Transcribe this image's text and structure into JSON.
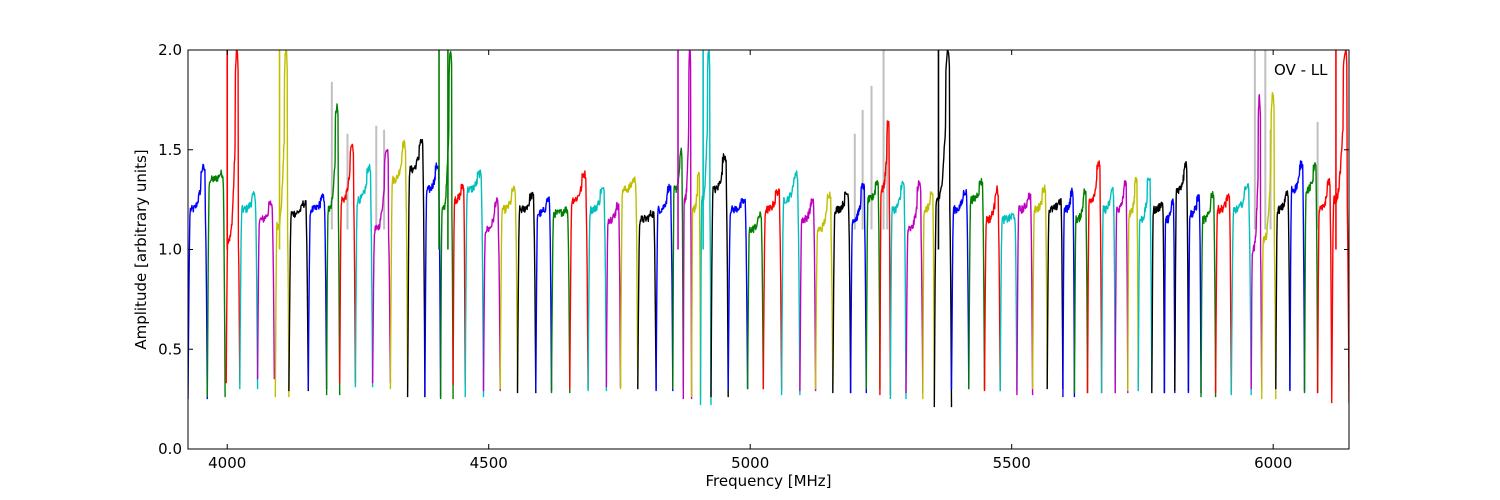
{
  "chart_data": {
    "type": "line",
    "title": "",
    "xlabel": "Frequency [MHz]",
    "ylabel": "Amplitude [arbitrary units]",
    "xlim": [
      3925,
      6145
    ],
    "ylim": [
      0.0,
      2.0
    ],
    "xticks": [
      4000,
      4500,
      5000,
      5500,
      6000
    ],
    "yticks": [
      0.0,
      0.5,
      1.0,
      1.5,
      2.0
    ],
    "xtick_labels": [
      "4000",
      "4500",
      "5000",
      "5500",
      "6000"
    ],
    "ytick_labels": [
      "0.0",
      "0.5",
      "1.0",
      "1.5",
      "2.0"
    ],
    "annotation": "OV - LL",
    "grid": false,
    "series_colors": [
      "#0000ff",
      "#008000",
      "#ff0000",
      "#00bfbf",
      "#bf00bf",
      "#bfbf00",
      "#000000"
    ],
    "raw_color": "#c0c0c0",
    "channels": [
      {
        "x0": 3925,
        "x1": 3962,
        "base": 0.25,
        "level": 1.2,
        "peak": 1.41,
        "color": "#0000ff"
      },
      {
        "x0": 3962,
        "x1": 3996,
        "base": 0.26,
        "level": 1.35,
        "peak": 1.38,
        "color": "#008000"
      },
      {
        "x0": 3998,
        "x1": 4024,
        "base": 0.33,
        "level": 1.05,
        "peak": 2.0,
        "color": "#ff0000"
      },
      {
        "x0": 4024,
        "x1": 4058,
        "base": 0.3,
        "level": 1.2,
        "peak": 1.27,
        "color": "#00bfbf"
      },
      {
        "x0": 4058,
        "x1": 4090,
        "base": 0.35,
        "level": 1.15,
        "peak": 1.23,
        "color": "#bf00bf"
      },
      {
        "x0": 4092,
        "x1": 4118,
        "base": 0.26,
        "level": 1.12,
        "peak": 2.0,
        "color": "#bfbf00"
      },
      {
        "x0": 4118,
        "x1": 4155,
        "base": 0.29,
        "level": 1.18,
        "peak": 1.23,
        "color": "#000000"
      },
      {
        "x0": 4155,
        "x1": 4190,
        "base": 0.3,
        "level": 1.2,
        "peak": 1.26,
        "color": "#0000ff"
      },
      {
        "x0": 4190,
        "x1": 4215,
        "base": 0.27,
        "level": 1.2,
        "peak": 1.72,
        "color": "#008000"
      },
      {
        "x0": 4215,
        "x1": 4245,
        "base": 0.33,
        "level": 1.25,
        "peak": 1.52,
        "color": "#ff0000"
      },
      {
        "x0": 4245,
        "x1": 4278,
        "base": 0.31,
        "level": 1.25,
        "peak": 1.41,
        "color": "#00bfbf"
      },
      {
        "x0": 4278,
        "x1": 4312,
        "base": 0.33,
        "level": 1.1,
        "peak": 1.51,
        "color": "#bf00bf"
      },
      {
        "x0": 4312,
        "x1": 4345,
        "base": 0.3,
        "level": 1.35,
        "peak": 1.53,
        "color": "#bfbf00"
      },
      {
        "x0": 4345,
        "x1": 4378,
        "base": 0.26,
        "level": 1.4,
        "peak": 1.54,
        "color": "#000000"
      },
      {
        "x0": 4378,
        "x1": 4408,
        "base": 0.26,
        "level": 1.3,
        "peak": 1.42,
        "color": "#0000ff"
      },
      {
        "x0": 4408,
        "x1": 4432,
        "base": 0.25,
        "level": 1.2,
        "peak": 2.0,
        "color": "#008000"
      },
      {
        "x0": 4432,
        "x1": 4455,
        "base": 0.32,
        "level": 1.25,
        "peak": 1.32,
        "color": "#ff0000"
      },
      {
        "x0": 4455,
        "x1": 4490,
        "base": 0.26,
        "level": 1.3,
        "peak": 1.38,
        "color": "#00bfbf"
      },
      {
        "x0": 4490,
        "x1": 4522,
        "base": 0.29,
        "level": 1.1,
        "peak": 1.24,
        "color": "#bf00bf"
      },
      {
        "x0": 4522,
        "x1": 4555,
        "base": 0.3,
        "level": 1.2,
        "peak": 1.3,
        "color": "#bfbf00"
      },
      {
        "x0": 4555,
        "x1": 4590,
        "base": 0.28,
        "level": 1.2,
        "peak": 1.27,
        "color": "#000000"
      },
      {
        "x0": 4590,
        "x1": 4620,
        "base": 0.29,
        "level": 1.18,
        "peak": 1.25,
        "color": "#0000ff"
      },
      {
        "x0": 4620,
        "x1": 4655,
        "base": 0.28,
        "level": 1.18,
        "peak": 1.2,
        "color": "#008000"
      },
      {
        "x0": 4655,
        "x1": 4690,
        "base": 0.3,
        "level": 1.25,
        "peak": 1.38,
        "color": "#ff0000"
      },
      {
        "x0": 4690,
        "x1": 4725,
        "base": 0.29,
        "level": 1.2,
        "peak": 1.3,
        "color": "#00bfbf"
      },
      {
        "x0": 4725,
        "x1": 4752,
        "base": 0.31,
        "level": 1.15,
        "peak": 1.22,
        "color": "#bf00bf"
      },
      {
        "x0": 4752,
        "x1": 4785,
        "base": 0.3,
        "level": 1.3,
        "peak": 1.35,
        "color": "#bfbf00"
      },
      {
        "x0": 4785,
        "x1": 4820,
        "base": 0.3,
        "level": 1.15,
        "peak": 1.18,
        "color": "#000000"
      },
      {
        "x0": 4820,
        "x1": 4852,
        "base": 0.29,
        "level": 1.2,
        "peak": 1.31,
        "color": "#0000ff"
      },
      {
        "x0": 4852,
        "x1": 4872,
        "base": 0.3,
        "level": 1.3,
        "peak": 1.49,
        "color": "#008000"
      },
      {
        "x0": 4872,
        "x1": 4888,
        "base": 0.25,
        "level": 1.25,
        "peak": 2.0,
        "color": "#bf00bf"
      },
      {
        "x0": 4888,
        "x1": 4905,
        "base": 0.26,
        "level": 1.2,
        "peak": 1.38,
        "color": "#bfbf00"
      },
      {
        "x0": 4905,
        "x1": 4925,
        "base": 0.22,
        "level": 1.25,
        "peak": 2.0,
        "color": "#00bfbf"
      },
      {
        "x0": 4925,
        "x1": 4958,
        "base": 0.26,
        "level": 1.3,
        "peak": 1.47,
        "color": "#000000"
      },
      {
        "x0": 4958,
        "x1": 4995,
        "base": 0.3,
        "level": 1.2,
        "peak": 1.24,
        "color": "#0000ff"
      },
      {
        "x0": 4995,
        "x1": 5025,
        "base": 0.3,
        "level": 1.1,
        "peak": 1.17,
        "color": "#008000"
      },
      {
        "x0": 5025,
        "x1": 5060,
        "base": 0.3,
        "level": 1.2,
        "peak": 1.29,
        "color": "#ff0000"
      },
      {
        "x0": 5060,
        "x1": 5095,
        "base": 0.27,
        "level": 1.25,
        "peak": 1.38,
        "color": "#00bfbf"
      },
      {
        "x0": 5095,
        "x1": 5125,
        "base": 0.29,
        "level": 1.15,
        "peak": 1.24,
        "color": "#bf00bf"
      },
      {
        "x0": 5125,
        "x1": 5158,
        "base": 0.3,
        "level": 1.1,
        "peak": 1.28,
        "color": "#bfbf00"
      },
      {
        "x0": 5158,
        "x1": 5192,
        "base": 0.28,
        "level": 1.2,
        "peak": 1.28,
        "color": "#000000"
      },
      {
        "x0": 5192,
        "x1": 5222,
        "base": 0.28,
        "level": 1.15,
        "peak": 1.32,
        "color": "#0000ff"
      },
      {
        "x0": 5222,
        "x1": 5248,
        "base": 0.3,
        "level": 1.25,
        "peak": 1.34,
        "color": "#008000"
      },
      {
        "x0": 5248,
        "x1": 5268,
        "base": 0.27,
        "level": 1.3,
        "peak": 1.64,
        "color": "#ff0000"
      },
      {
        "x0": 5268,
        "x1": 5298,
        "base": 0.25,
        "level": 1.2,
        "peak": 1.33,
        "color": "#00bfbf"
      },
      {
        "x0": 5298,
        "x1": 5330,
        "base": 0.28,
        "level": 1.1,
        "peak": 1.33,
        "color": "#bf00bf"
      },
      {
        "x0": 5330,
        "x1": 5352,
        "base": 0.25,
        "level": 1.2,
        "peak": 1.28,
        "color": "#bfbf00"
      },
      {
        "x0": 5352,
        "x1": 5385,
        "base": 0.21,
        "level": 1.25,
        "peak": 2.0,
        "color": "#000000"
      },
      {
        "x0": 5385,
        "x1": 5418,
        "base": 0.3,
        "level": 1.2,
        "peak": 1.29,
        "color": "#0000ff"
      },
      {
        "x0": 5418,
        "x1": 5448,
        "base": 0.3,
        "level": 1.25,
        "peak": 1.34,
        "color": "#008000"
      },
      {
        "x0": 5448,
        "x1": 5478,
        "base": 0.29,
        "level": 1.15,
        "peak": 1.3,
        "color": "#ff0000"
      },
      {
        "x0": 5478,
        "x1": 5510,
        "base": 0.29,
        "level": 1.15,
        "peak": 1.17,
        "color": "#00bfbf"
      },
      {
        "x0": 5510,
        "x1": 5540,
        "base": 0.27,
        "level": 1.2,
        "peak": 1.27,
        "color": "#bf00bf"
      },
      {
        "x0": 5540,
        "x1": 5568,
        "base": 0.3,
        "level": 1.2,
        "peak": 1.31,
        "color": "#bfbf00"
      },
      {
        "x0": 5568,
        "x1": 5598,
        "base": 0.3,
        "level": 1.2,
        "peak": 1.24,
        "color": "#000000"
      },
      {
        "x0": 5598,
        "x1": 5620,
        "base": 0.26,
        "level": 1.2,
        "peak": 1.29,
        "color": "#0000ff"
      },
      {
        "x0": 5620,
        "x1": 5645,
        "base": 0.28,
        "level": 1.15,
        "peak": 1.29,
        "color": "#008000"
      },
      {
        "x0": 5645,
        "x1": 5672,
        "base": 0.28,
        "level": 1.25,
        "peak": 1.43,
        "color": "#ff0000"
      },
      {
        "x0": 5672,
        "x1": 5698,
        "base": 0.28,
        "level": 1.2,
        "peak": 1.3,
        "color": "#00bfbf"
      },
      {
        "x0": 5698,
        "x1": 5722,
        "base": 0.28,
        "level": 1.2,
        "peak": 1.33,
        "color": "#bf00bf"
      },
      {
        "x0": 5722,
        "x1": 5742,
        "base": 0.29,
        "level": 1.18,
        "peak": 1.36,
        "color": "#bfbf00"
      },
      {
        "x0": 5742,
        "x1": 5768,
        "base": 0.29,
        "level": 1.15,
        "peak": 1.36,
        "color": "#00bfbf"
      },
      {
        "x0": 5768,
        "x1": 5792,
        "base": 0.28,
        "level": 1.2,
        "peak": 1.23,
        "color": "#000000"
      },
      {
        "x0": 5792,
        "x1": 5812,
        "base": 0.28,
        "level": 1.15,
        "peak": 1.24,
        "color": "#0000ff"
      },
      {
        "x0": 5812,
        "x1": 5838,
        "base": 0.29,
        "level": 1.3,
        "peak": 1.43,
        "color": "#000000"
      },
      {
        "x0": 5838,
        "x1": 5862,
        "base": 0.28,
        "level": 1.18,
        "peak": 1.26,
        "color": "#0000ff"
      },
      {
        "x0": 5862,
        "x1": 5890,
        "base": 0.26,
        "level": 1.15,
        "peak": 1.28,
        "color": "#008000"
      },
      {
        "x0": 5890,
        "x1": 5920,
        "base": 0.28,
        "level": 1.2,
        "peak": 1.26,
        "color": "#ff0000"
      },
      {
        "x0": 5920,
        "x1": 5958,
        "base": 0.27,
        "level": 1.2,
        "peak": 1.32,
        "color": "#00bfbf"
      },
      {
        "x0": 5958,
        "x1": 5978,
        "base": 0.3,
        "level": 1.0,
        "peak": 1.76,
        "color": "#bf00bf"
      },
      {
        "x0": 5978,
        "x1": 6005,
        "base": 0.25,
        "level": 1.05,
        "peak": 1.78,
        "color": "#bfbf00"
      },
      {
        "x0": 6005,
        "x1": 6032,
        "base": 0.3,
        "level": 1.2,
        "peak": 1.28,
        "color": "#000000"
      },
      {
        "x0": 6032,
        "x1": 6060,
        "base": 0.29,
        "level": 1.3,
        "peak": 1.43,
        "color": "#0000ff"
      },
      {
        "x0": 6060,
        "x1": 6085,
        "base": 0.28,
        "level": 1.3,
        "peak": 1.42,
        "color": "#008000"
      },
      {
        "x0": 6085,
        "x1": 6112,
        "base": 0.28,
        "level": 1.2,
        "peak": 1.34,
        "color": "#ff0000"
      },
      {
        "x0": 6112,
        "x1": 6145,
        "base": 0.23,
        "level": 1.25,
        "peak": 2.0,
        "color": "#ff0000"
      }
    ],
    "spikes": [
      {
        "x": 4000,
        "y": 2.0,
        "color": "#ff0000"
      },
      {
        "x": 4100,
        "y": 2.0,
        "color": "#bfbf00"
      },
      {
        "x": 4405,
        "y": 2.0,
        "color": "#008000"
      },
      {
        "x": 4422,
        "y": 2.0,
        "color": "#008000"
      },
      {
        "x": 4862,
        "y": 2.0,
        "color": "#bf00bf"
      },
      {
        "x": 4910,
        "y": 2.0,
        "color": "#00bfbf"
      },
      {
        "x": 5360,
        "y": 2.0,
        "color": "#000000"
      },
      {
        "x": 6120,
        "y": 2.0,
        "color": "#ff0000"
      }
    ],
    "raw_spikes": [
      {
        "x": 4200,
        "y": 1.84
      },
      {
        "x": 4230,
        "y": 1.58
      },
      {
        "x": 4285,
        "y": 1.62
      },
      {
        "x": 4300,
        "y": 1.6
      },
      {
        "x": 5200,
        "y": 1.58
      },
      {
        "x": 5215,
        "y": 1.7
      },
      {
        "x": 5232,
        "y": 1.82
      },
      {
        "x": 5255,
        "y": 2.0
      },
      {
        "x": 5262,
        "y": 1.65
      },
      {
        "x": 5965,
        "y": 2.0
      },
      {
        "x": 5985,
        "y": 2.0
      },
      {
        "x": 5995,
        "y": 1.6
      },
      {
        "x": 6085,
        "y": 1.64
      }
    ]
  }
}
